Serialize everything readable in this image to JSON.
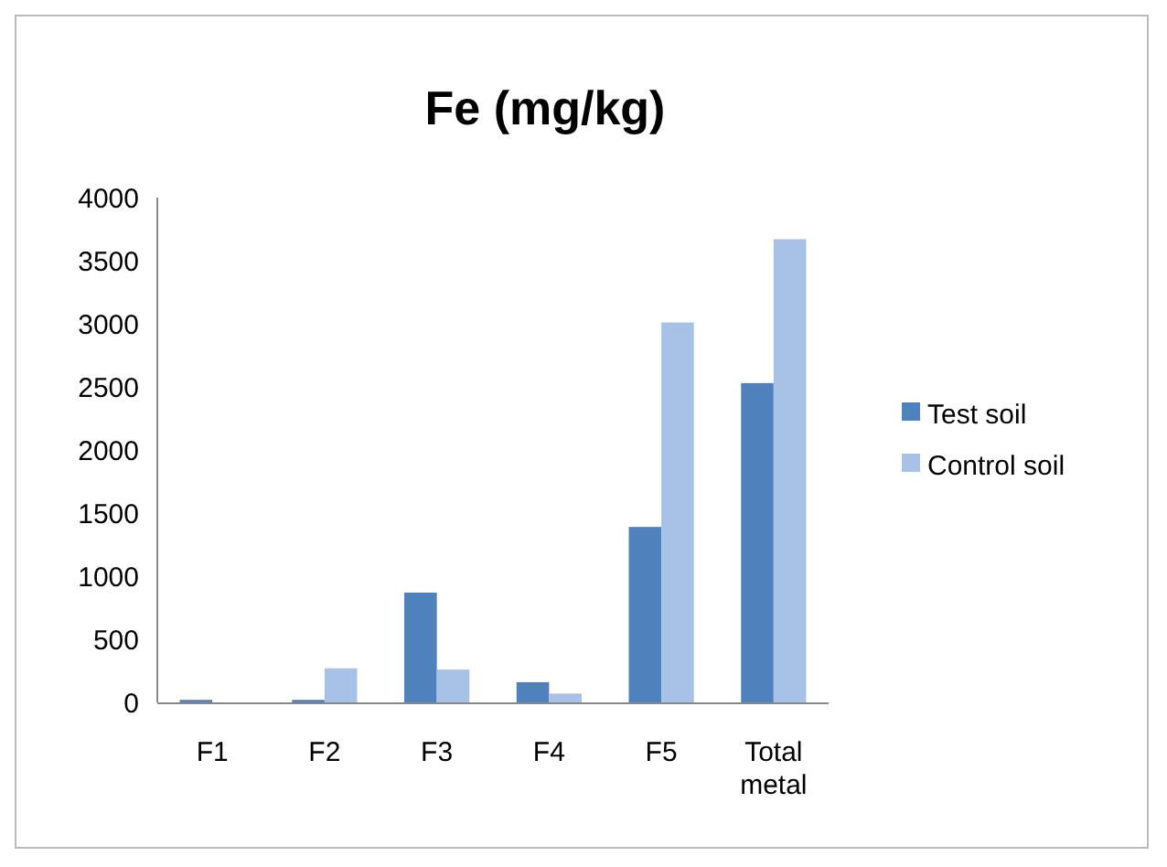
{
  "chart_data": {
    "type": "bar",
    "title": "Fe (mg/kg)",
    "categories": [
      "F1",
      "F2",
      "F3",
      "F4",
      "F5",
      "Total metal"
    ],
    "series": [
      {
        "name": "Test soil",
        "color": "#4f81bd",
        "values": [
          20,
          20,
          870,
          160,
          1390,
          2530
        ]
      },
      {
        "name": "Control soil",
        "color": "#a7c2e6",
        "values": [
          0,
          270,
          260,
          70,
          3010,
          3670
        ]
      }
    ],
    "ylim": [
      0,
      4000
    ],
    "yticks": [
      0,
      500,
      1000,
      1500,
      2000,
      2500,
      3000,
      3500,
      4000
    ],
    "grid": false,
    "legend": "right"
  }
}
